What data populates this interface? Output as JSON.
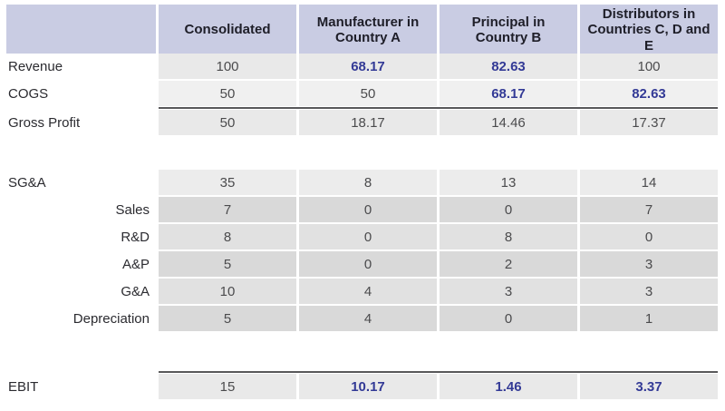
{
  "colors": {
    "header_bg": "#c9cce3",
    "accent_blue": "#333a96",
    "rule_dark": "#58585a",
    "row_gray_light": "#e9e9e9",
    "row_gray_dark": "#d9d9d9"
  },
  "header": {
    "col1": "Consolidated",
    "col2": "Manufacturer in Country A",
    "col3": "Principal in Country B",
    "col4": "Distributors in Countries C, D and E"
  },
  "rows": [
    {
      "label": "Revenue",
      "values": [
        "100",
        "68.17",
        "82.63",
        "100"
      ]
    },
    {
      "label": "COGS",
      "values": [
        "50",
        "50",
        "68.17",
        "82.63"
      ]
    },
    {
      "label": "Gross Profit",
      "values": [
        "50",
        "18.17",
        "14.46",
        "17.37"
      ]
    },
    {
      "label": "SG&A",
      "values": [
        "35",
        "8",
        "13",
        "14"
      ]
    },
    {
      "label": "Sales",
      "values": [
        "7",
        "0",
        "0",
        "7"
      ]
    },
    {
      "label": "R&D",
      "values": [
        "8",
        "0",
        "8",
        "0"
      ]
    },
    {
      "label": "A&P",
      "values": [
        "5",
        "0",
        "2",
        "3"
      ]
    },
    {
      "label": "G&A",
      "values": [
        "10",
        "4",
        "3",
        "3"
      ]
    },
    {
      "label": "Depreciation",
      "values": [
        "5",
        "4",
        "0",
        "1"
      ]
    },
    {
      "label": "EBIT",
      "values": [
        "15",
        "10.17",
        "1.46",
        "3.37"
      ]
    }
  ]
}
